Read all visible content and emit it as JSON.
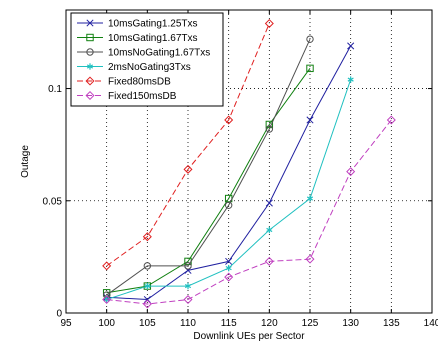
{
  "chart_data": {
    "type": "line",
    "xlabel": "Downlink UEs per Sector",
    "ylabel": "Outage",
    "xlim": [
      95,
      140
    ],
    "ylim": [
      0,
      0.135
    ],
    "xticks": [
      95,
      100,
      105,
      110,
      115,
      120,
      125,
      130,
      135,
      140
    ],
    "yticks": [
      0,
      0.05,
      0.1
    ],
    "ytick_labels": [
      "0",
      "0.05",
      "0.1"
    ],
    "grid": true,
    "legend_position": "top-left",
    "series": [
      {
        "name": "10msGating1.25Txs",
        "color": "#2020a0",
        "dash": "solid",
        "marker": "x",
        "x": [
          100,
          105,
          110,
          115,
          120,
          125,
          130
        ],
        "y": [
          0.007,
          0.006,
          0.019,
          0.023,
          0.049,
          0.086,
          0.119
        ]
      },
      {
        "name": "10msGating1.67Txs",
        "color": "#108010",
        "dash": "solid",
        "marker": "square",
        "x": [
          100,
          105,
          110,
          115,
          120,
          125
        ],
        "y": [
          0.009,
          0.012,
          0.023,
          0.051,
          0.084,
          0.109
        ]
      },
      {
        "name": "10msNoGating1.67Txs",
        "color": "#505050",
        "dash": "solid",
        "marker": "circle",
        "x": [
          100,
          105,
          110,
          115,
          120,
          125
        ],
        "y": [
          0.008,
          0.021,
          0.021,
          0.048,
          0.082,
          0.122
        ]
      },
      {
        "name": "2msNoGating3Txs",
        "color": "#20c0c0",
        "dash": "solid",
        "marker": "star",
        "x": [
          100,
          105,
          110,
          115,
          120,
          125,
          130
        ],
        "y": [
          0.006,
          0.012,
          0.012,
          0.02,
          0.037,
          0.051,
          0.104
        ]
      },
      {
        "name": "Fixed80msDB",
        "color": "#e02020",
        "dash": "dashed",
        "marker": "diamond",
        "x": [
          100,
          105,
          110,
          115,
          120
        ],
        "y": [
          0.021,
          0.034,
          0.064,
          0.086,
          0.129
        ]
      },
      {
        "name": "Fixed150msDB",
        "color": "#c040c0",
        "dash": "dashed",
        "marker": "diamond",
        "x": [
          100,
          105,
          110,
          115,
          120,
          125,
          130,
          135
        ],
        "y": [
          0.006,
          0.004,
          0.006,
          0.016,
          0.023,
          0.024,
          0.063,
          0.086
        ]
      }
    ]
  }
}
